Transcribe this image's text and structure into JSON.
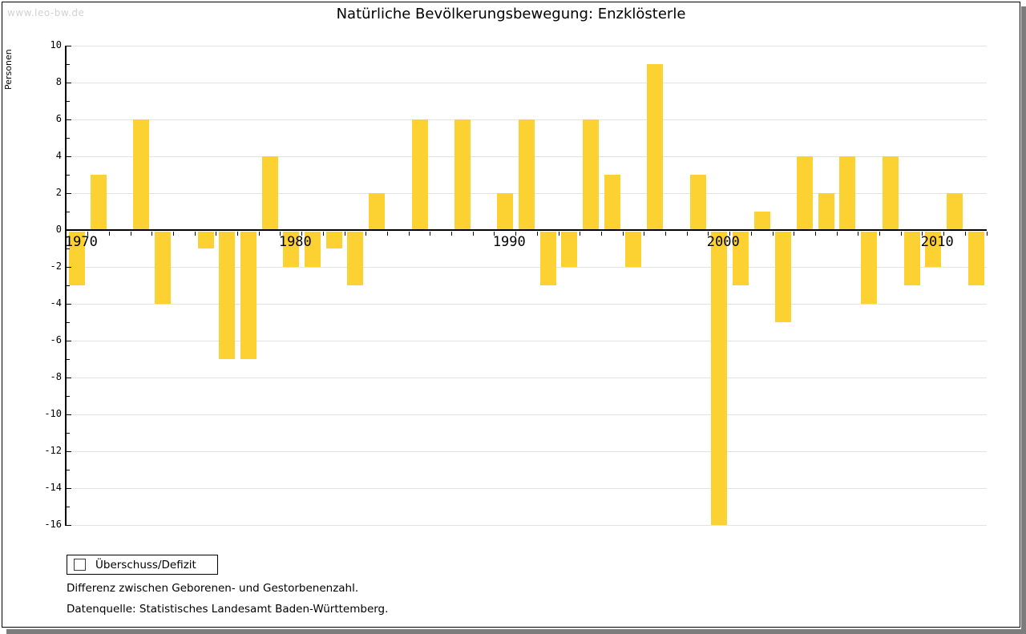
{
  "watermark": "www.leo-bw.de",
  "title": "Natürliche Bevölkerungsbewegung: Enzklösterle",
  "legend": {
    "label": "Überschuss/Defizit"
  },
  "notes": [
    "Differenz zwischen Geborenen- und Gestorbenenzahl.",
    "Datenquelle: Statistisches Landesamt Baden-Württemberg."
  ],
  "colors": {
    "bar": "#FCD232",
    "grid": "#e3e3e3",
    "axis": "#000000",
    "shadow": "#7c7c7c",
    "watermark": "#d2d2d2"
  },
  "chart_data": {
    "type": "bar",
    "title": "Natürliche Bevölkerungsbewegung: Enzklösterle",
    "xlabel": "",
    "ylabel": "Personen",
    "ylim": [
      -16,
      10
    ],
    "ytick_step": 2,
    "grid": true,
    "legend_position": "bottom-left",
    "series_name": "Überschuss/Defizit",
    "bar_color": "#FCD232",
    "x": [
      1970,
      1971,
      1972,
      1973,
      1974,
      1975,
      1976,
      1977,
      1978,
      1979,
      1980,
      1981,
      1982,
      1983,
      1984,
      1985,
      1986,
      1987,
      1988,
      1989,
      1990,
      1991,
      1992,
      1993,
      1994,
      1995,
      1996,
      1997,
      1998,
      1999,
      2000,
      2001,
      2002,
      2003,
      2004,
      2005,
      2006,
      2007,
      2008,
      2009,
      2010,
      2011,
      2012
    ],
    "values": [
      -3,
      3,
      0,
      6,
      -4,
      0,
      -1,
      -7,
      -7,
      4,
      -2,
      -2,
      -1,
      -3,
      2,
      0,
      6,
      0,
      6,
      0,
      2,
      6,
      -3,
      -2,
      6,
      3,
      -2,
      9,
      0,
      3,
      -16,
      -3,
      1,
      -5,
      4,
      2,
      4,
      -4,
      4,
      -3,
      -2,
      2,
      -3
    ]
  }
}
